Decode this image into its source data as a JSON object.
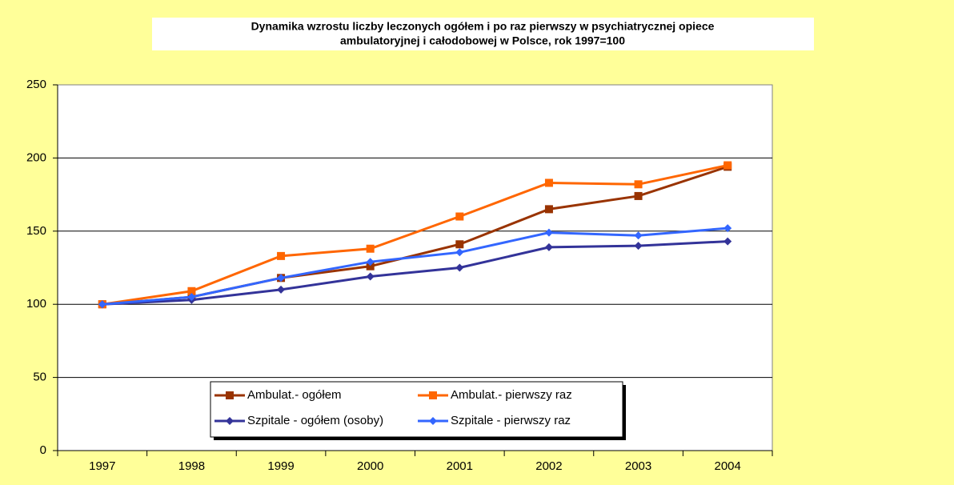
{
  "chart_data": {
    "type": "line",
    "title": [
      "Dynamika wzrostu liczby leczonych ogółem i po raz pierwszy w  psychiatrycznej opiece",
      "ambulatoryjnej i całodobowej w Polsce, rok 1997=100"
    ],
    "categories": [
      "1997",
      "1998",
      "1999",
      "2000",
      "2001",
      "2002",
      "2003",
      "2004"
    ],
    "series": [
      {
        "name": "Ambulat.- ogółem",
        "color": "#993300",
        "marker": "square",
        "values": [
          100,
          105,
          118,
          126,
          141,
          165,
          174,
          194
        ]
      },
      {
        "name": "Ambulat.- pierwszy raz",
        "color": "#ff6600",
        "marker": "square",
        "values": [
          100,
          109,
          133,
          138,
          160,
          183,
          182,
          195
        ]
      },
      {
        "name": "Szpitale - ogółem (osoby)",
        "color": "#333399",
        "marker": "diamond",
        "values": [
          100,
          103,
          110,
          119,
          125,
          139,
          140,
          143
        ]
      },
      {
        "name": "Szpitale - pierwszy raz",
        "color": "#3366ff",
        "marker": "diamond",
        "values": [
          100,
          105,
          118,
          129,
          135.5,
          149,
          147,
          152
        ]
      }
    ],
    "ylim": [
      0,
      250
    ],
    "yticks": [
      0,
      50,
      100,
      150,
      200,
      250
    ],
    "grid": true
  }
}
